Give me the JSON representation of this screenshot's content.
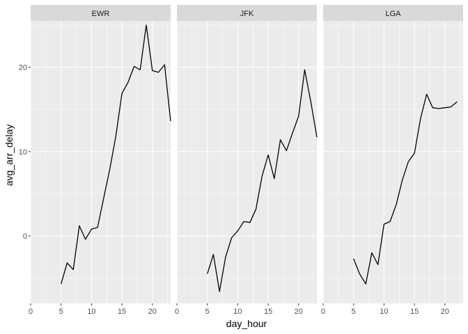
{
  "chart_data": {
    "type": "line",
    "xlabel": "day_hour",
    "ylabel": "avg_arr_delay",
    "xlim": [
      0,
      23
    ],
    "ylim": [
      -8,
      25.5
    ],
    "x_ticks": [
      0,
      5,
      10,
      15,
      20
    ],
    "y_ticks": [
      0,
      10,
      20
    ],
    "grid": true,
    "colors": {
      "panel_bg": "#ebebeb",
      "strip_bg": "#d9d9d9",
      "grid": "#ffffff",
      "line": "#000000"
    },
    "facets": [
      {
        "label": "EWR",
        "x": [
          5,
          6,
          7,
          8,
          9,
          10,
          11,
          12,
          13,
          14,
          15,
          16,
          17,
          18,
          19,
          20,
          21,
          22,
          23
        ],
        "y": [
          -5.7,
          -3.2,
          -4.0,
          1.2,
          -0.4,
          0.8,
          1.0,
          4.5,
          7.9,
          11.8,
          16.9,
          18.2,
          20.1,
          19.7,
          25.0,
          19.6,
          19.4,
          20.3,
          13.6
        ]
      },
      {
        "label": "JFK",
        "x": [
          5,
          6,
          7,
          8,
          9,
          10,
          11,
          12,
          13,
          14,
          15,
          16,
          17,
          18,
          19,
          20,
          21,
          22,
          23
        ],
        "y": [
          -4.5,
          -2.2,
          -6.6,
          -2.5,
          -0.2,
          0.6,
          1.7,
          1.6,
          3.2,
          7.1,
          9.6,
          6.8,
          11.4,
          10.1,
          12.2,
          14.2,
          19.7,
          15.9,
          11.7
        ]
      },
      {
        "label": "LGA",
        "x": [
          5,
          6,
          7,
          8,
          9,
          10,
          11,
          12,
          13,
          14,
          15,
          16,
          17,
          18,
          19,
          20,
          21,
          22
        ],
        "y": [
          -2.7,
          -4.5,
          -5.7,
          -2.0,
          -3.4,
          1.4,
          1.7,
          3.7,
          6.6,
          8.8,
          9.8,
          13.9,
          16.8,
          15.2,
          15.1,
          15.2,
          15.3,
          15.9
        ]
      }
    ]
  }
}
